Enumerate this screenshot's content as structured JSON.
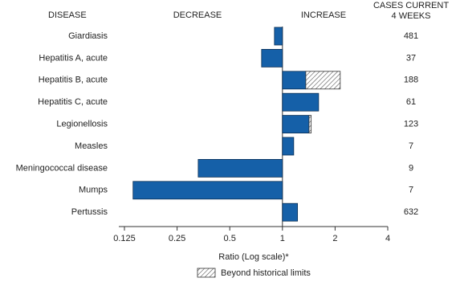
{
  "chart_data": {
    "type": "bar",
    "headers": {
      "disease": "DISEASE",
      "decrease": "DECREASE",
      "increase": "INCREASE",
      "cases": [
        "CASES CURRENT",
        "4 WEEKS"
      ]
    },
    "categories": [
      "Giardiasis",
      "Hepatitis A, acute",
      "Hepatitis B, acute",
      "Hepatitis C, acute",
      "Legionellosis",
      "Measles",
      "Meningococcal disease",
      "Mumps",
      "Pertussis"
    ],
    "values": [
      0.9,
      0.76,
      2.14,
      1.61,
      1.46,
      1.16,
      0.33,
      0.14,
      1.22
    ],
    "historical_limit": [
      null,
      null,
      1.36,
      null,
      1.42,
      null,
      null,
      null,
      null
    ],
    "cases": [
      481,
      37,
      188,
      61,
      123,
      7,
      9,
      7,
      632
    ],
    "color": "#1560a8",
    "xlim": [
      0.125,
      4
    ],
    "xticks": [
      0.125,
      0.25,
      0.5,
      1,
      2,
      4
    ],
    "log_scale": true,
    "xlabel": "Ratio (Log scale)*",
    "legend": "Beyond historical limits"
  }
}
